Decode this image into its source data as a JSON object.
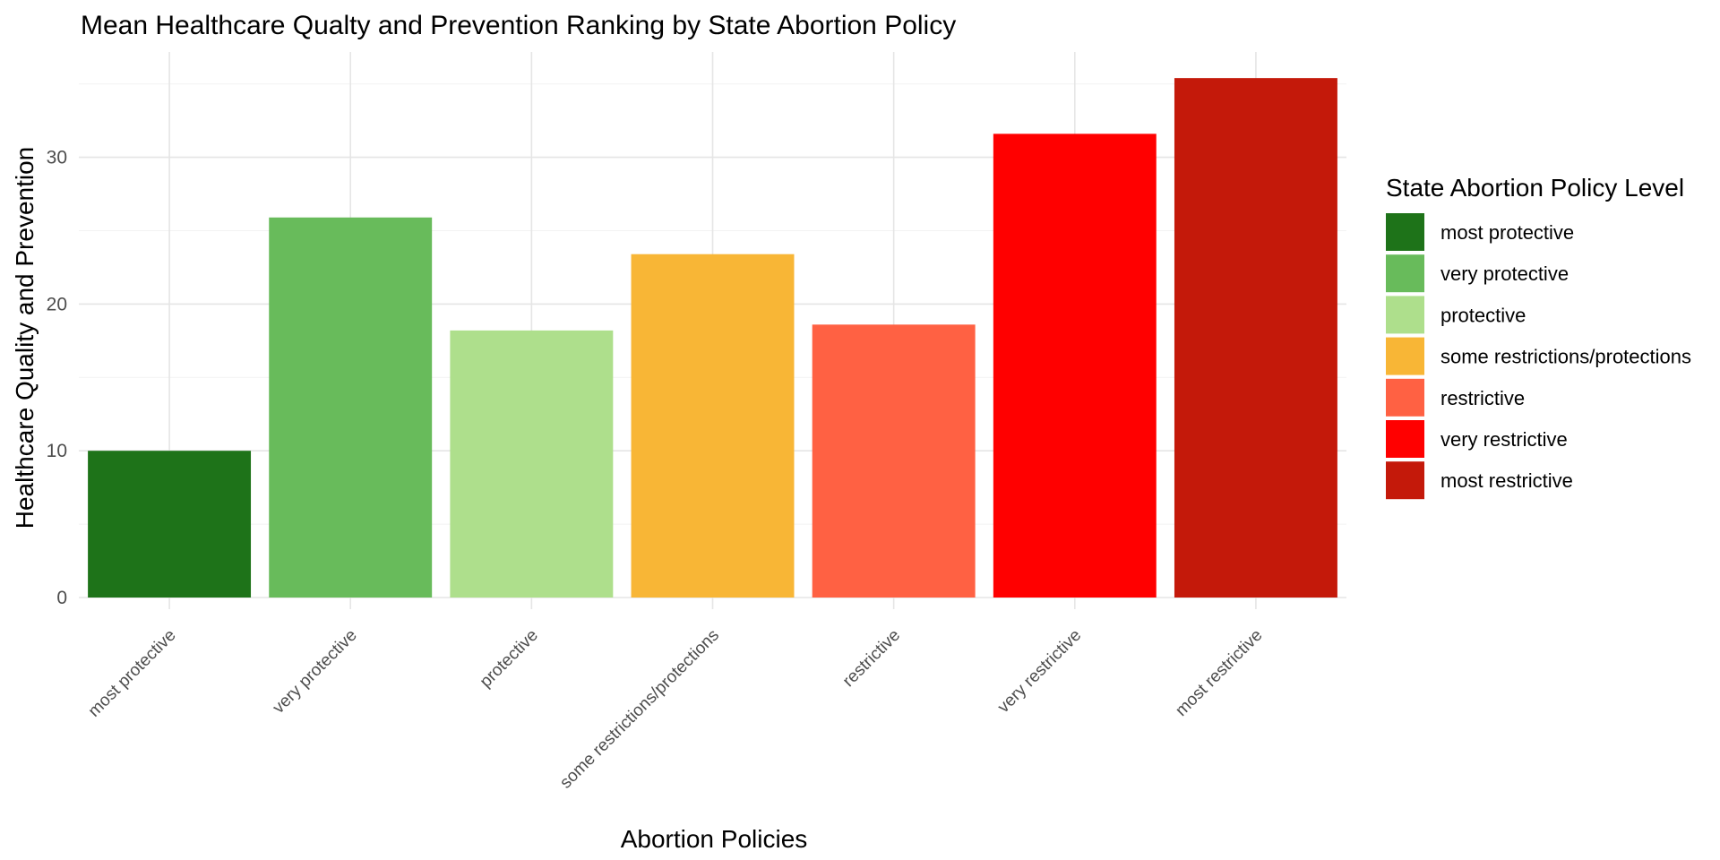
{
  "chart_data": {
    "type": "bar",
    "title": "Mean Healthcare Qualty and Prevention Ranking by State Abortion Policy",
    "xlabel": "Abortion Policies",
    "ylabel": "Healthcare Quality and Prevention",
    "categories": [
      "most protective",
      "very protective",
      "protective",
      "some restrictions/protections",
      "restrictive",
      "very restrictive",
      "most restrictive"
    ],
    "values": [
      10.0,
      25.9,
      18.2,
      23.4,
      18.6,
      31.6,
      35.4
    ],
    "colors": [
      "#1e7319",
      "#68bb5b",
      "#aedf8c",
      "#f8b636",
      "#ff6143",
      "#ff0000",
      "#c4190a"
    ],
    "ylim": [
      0,
      36
    ],
    "yticks": [
      0,
      10,
      20,
      30
    ],
    "grid": true,
    "legend": {
      "title": "State Abortion Policy Level",
      "position": "right",
      "entries": [
        "most protective",
        "very protective",
        "protective",
        "some restrictions/protections",
        "restrictive",
        "very restrictive",
        "most restrictive"
      ]
    }
  }
}
